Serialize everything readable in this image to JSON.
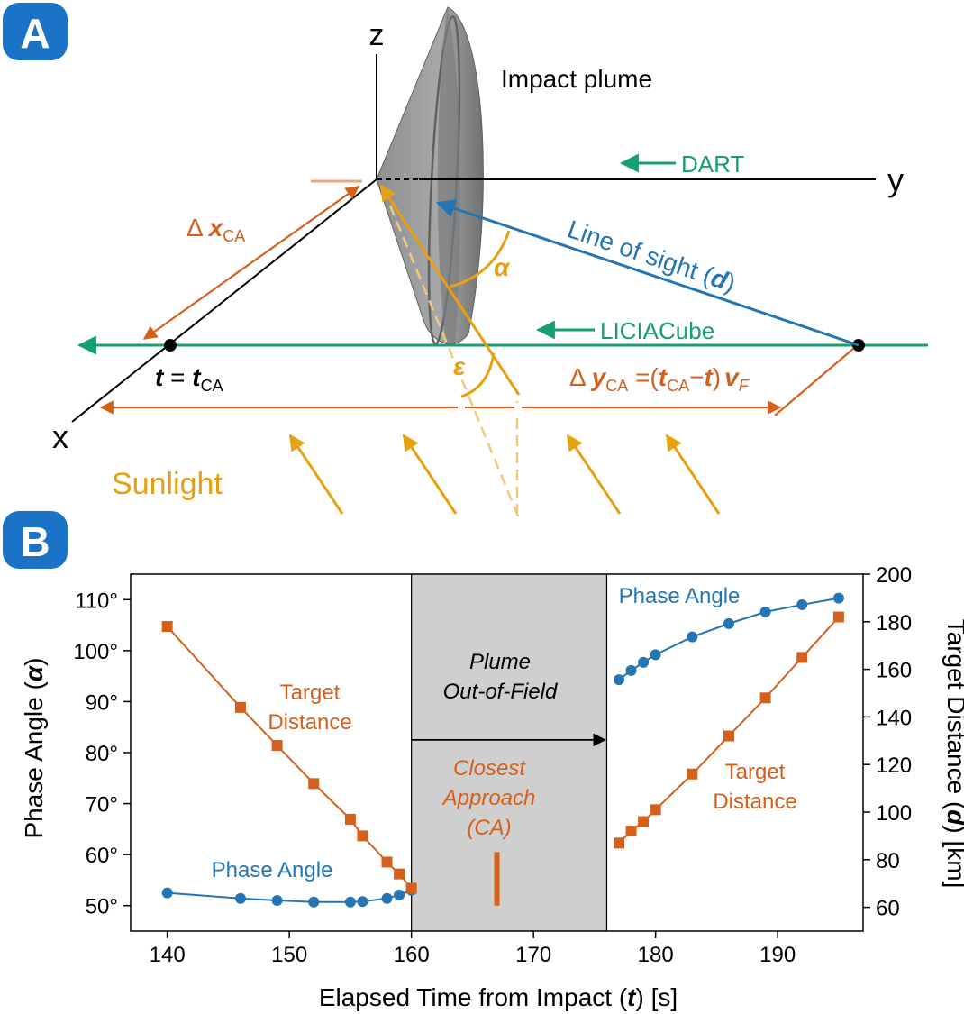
{
  "panel_a": {
    "badge": "A",
    "axis_z": "z",
    "axis_y": "y",
    "axis_x": "x",
    "plume_label": "Impact plume",
    "dart_label": "DART",
    "liciacube_label": "LICIACube",
    "line_of_sight": "Line of sight (",
    "line_of_sight_d": "d",
    "line_of_sight_close": ")",
    "alpha": "α",
    "epsilon": "ε",
    "delta_x_prefix": "Δ",
    "delta_x_var": "x",
    "delta_x_sub": "CA",
    "t_eq_t": "t",
    "t_eq_eq": " = ",
    "t_eq_t2": "t",
    "t_eq_sub": "CA",
    "delta_y_prefix": "Δ",
    "delta_y_var": "y",
    "delta_y_sub": "CA",
    "delta_y_eq": " =(",
    "delta_y_t1": "t",
    "delta_y_sub2": "CA",
    "delta_y_minus": "−",
    "delta_y_t2": "t",
    "delta_y_close": ")",
    "delta_y_v": "v",
    "delta_y_vsub": "F",
    "sunlight": "Sunlight",
    "colors": {
      "orange": "#d4601c",
      "green": "#179e72",
      "blue": "#2375b4",
      "gold": "#e6a010"
    }
  },
  "panel_b": {
    "badge": "B",
    "plume_oof_1": "Plume",
    "plume_oof_2": "Out-of-Field",
    "closest_1": "Closest",
    "closest_2": "Approach",
    "closest_3": "(CA)",
    "left_target_1": "Target",
    "left_target_2": "Distance",
    "right_target_1": "Target",
    "right_target_2": "Distance",
    "left_phase": "Phase Angle",
    "right_phase": "Phase Angle",
    "ylabel_left_a": "Phase Angle (",
    "ylabel_left_b": "α",
    "ylabel_left_c": ")",
    "ylabel_right_a": "Target Distance (",
    "ylabel_right_b": "d",
    "ylabel_right_c": ") [km]",
    "xlabel_a": "Elapsed Time from Impact (",
    "xlabel_b": "t",
    "xlabel_c": ") [s]"
  },
  "chart_data": {
    "type": "line",
    "xlabel": "Elapsed Time from Impact (t) [s]",
    "ylabel": "Phase Angle (α)",
    "y2label": "Target Distance (d) [km]",
    "xlim": [
      137,
      197
    ],
    "ylim": [
      45,
      115
    ],
    "y2lim": [
      50,
      200
    ],
    "xticks": [
      140,
      150,
      160,
      170,
      180,
      190
    ],
    "yticks": [
      50,
      60,
      70,
      80,
      90,
      100,
      110
    ],
    "ytick_labels": [
      "50°",
      "60°",
      "70°",
      "80°",
      "90°",
      "100°",
      "110°"
    ],
    "y2ticks": [
      60,
      80,
      100,
      120,
      140,
      160,
      180,
      200
    ],
    "shaded_region": [
      160,
      176
    ],
    "closest_approach_x": 167,
    "closest_approach_y": [
      60.5,
      50
    ],
    "arrow": {
      "from": 160,
      "to": 176,
      "y": 82.5
    },
    "series": [
      {
        "axis": "left",
        "color": "#2375b4",
        "marker": "circle",
        "x": [
          140,
          146,
          149,
          152,
          155,
          156,
          158,
          159,
          160
        ],
        "y": [
          52.5,
          51.4,
          51.0,
          50.7,
          50.7,
          50.8,
          51.4,
          52.1,
          53.0
        ]
      },
      {
        "axis": "right",
        "color": "#d4601c",
        "marker": "square",
        "x": [
          140,
          146,
          149,
          152,
          155,
          156,
          158,
          159,
          160
        ],
        "y": [
          178,
          144,
          128,
          112,
          97,
          90,
          79,
          74,
          68
        ]
      },
      {
        "axis": "left",
        "color": "#2375b4",
        "marker": "circle",
        "x": [
          177,
          178,
          179,
          180,
          183,
          186,
          189,
          192,
          195
        ],
        "y": [
          94.3,
          96.1,
          97.7,
          99.2,
          102.7,
          105.3,
          107.6,
          109.0,
          110.3
        ]
      },
      {
        "axis": "right",
        "color": "#d4601c",
        "marker": "square",
        "x": [
          177,
          178,
          179,
          180,
          183,
          186,
          189,
          192,
          195
        ],
        "y": [
          87,
          92,
          96,
          101,
          116,
          132,
          148,
          165,
          182
        ]
      }
    ]
  }
}
